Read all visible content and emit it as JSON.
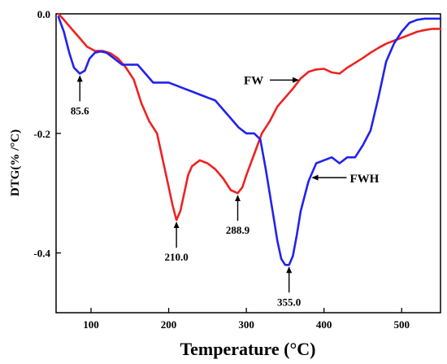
{
  "chart_data": {
    "type": "line",
    "xlabel": "Temperature (°C)",
    "ylabel": "DTG(% /°C)",
    "xlim": [
      55,
      550
    ],
    "ylim": [
      -0.5,
      0.0
    ],
    "xticks": [
      100,
      200,
      300,
      400,
      500
    ],
    "xtick_labels": [
      "100",
      "200",
      "300",
      "400",
      "500"
    ],
    "yticks": [
      0.0,
      -0.2,
      -0.4
    ],
    "ytick_labels": [
      "0.0",
      "-0.2",
      "-0.4"
    ],
    "grid": false,
    "series": [
      {
        "name": "FW",
        "color": "#ee2222",
        "x": [
          58,
          65,
          75,
          85,
          95,
          105,
          115,
          125,
          135,
          145,
          155,
          165,
          175,
          185,
          195,
          200,
          205,
          210,
          215,
          220,
          225,
          230,
          240,
          250,
          260,
          270,
          280,
          288.9,
          295,
          300,
          310,
          320,
          330,
          340,
          350,
          360,
          370,
          380,
          390,
          400,
          410,
          420,
          430,
          440,
          450,
          460,
          470,
          480,
          490,
          500,
          510,
          520,
          530,
          540,
          550
        ],
        "y": [
          0.0,
          -0.01,
          -0.025,
          -0.04,
          -0.055,
          -0.062,
          -0.062,
          -0.066,
          -0.075,
          -0.09,
          -0.11,
          -0.15,
          -0.18,
          -0.2,
          -0.26,
          -0.29,
          -0.32,
          -0.345,
          -0.33,
          -0.3,
          -0.27,
          -0.255,
          -0.245,
          -0.25,
          -0.26,
          -0.275,
          -0.295,
          -0.3,
          -0.29,
          -0.27,
          -0.235,
          -0.2,
          -0.18,
          -0.155,
          -0.14,
          -0.125,
          -0.108,
          -0.097,
          -0.093,
          -0.092,
          -0.098,
          -0.1,
          -0.09,
          -0.082,
          -0.074,
          -0.065,
          -0.057,
          -0.05,
          -0.045,
          -0.04,
          -0.035,
          -0.03,
          -0.027,
          -0.025,
          -0.025
        ]
      },
      {
        "name": "FWH",
        "color": "#2222ee",
        "x": [
          58,
          65,
          72,
          78,
          85.6,
          92,
          98,
          105,
          112,
          120,
          130,
          140,
          150,
          160,
          170,
          180,
          190,
          200,
          210,
          220,
          230,
          240,
          250,
          260,
          270,
          280,
          290,
          300,
          310,
          318,
          325,
          330,
          335,
          340,
          345,
          350,
          355,
          360,
          365,
          370,
          380,
          390,
          400,
          410,
          420,
          430,
          440,
          450,
          460,
          470,
          480,
          490,
          500,
          510,
          520,
          530,
          540,
          550
        ],
        "y": [
          -0.005,
          -0.03,
          -0.065,
          -0.09,
          -0.1,
          -0.095,
          -0.075,
          -0.065,
          -0.063,
          -0.065,
          -0.075,
          -0.085,
          -0.085,
          -0.085,
          -0.1,
          -0.115,
          -0.115,
          -0.115,
          -0.12,
          -0.125,
          -0.13,
          -0.135,
          -0.14,
          -0.145,
          -0.16,
          -0.175,
          -0.19,
          -0.2,
          -0.2,
          -0.21,
          -0.26,
          -0.3,
          -0.34,
          -0.38,
          -0.41,
          -0.42,
          -0.42,
          -0.405,
          -0.37,
          -0.33,
          -0.28,
          -0.25,
          -0.245,
          -0.24,
          -0.25,
          -0.24,
          -0.24,
          -0.22,
          -0.195,
          -0.14,
          -0.08,
          -0.05,
          -0.03,
          -0.015,
          -0.01,
          -0.008,
          -0.008,
          -0.008
        ]
      }
    ],
    "annotations": [
      {
        "text": "85.6",
        "x": 85.6,
        "y": -0.1
      },
      {
        "text": "210.0",
        "x": 210.0,
        "y": -0.345
      },
      {
        "text": "288.9",
        "x": 288.9,
        "y": -0.3
      },
      {
        "text": "355.0",
        "x": 355.0,
        "y": -0.42
      }
    ],
    "series_labels": [
      {
        "text": "FW",
        "series": "FW"
      },
      {
        "text": "FWH",
        "series": "FWH"
      }
    ]
  }
}
